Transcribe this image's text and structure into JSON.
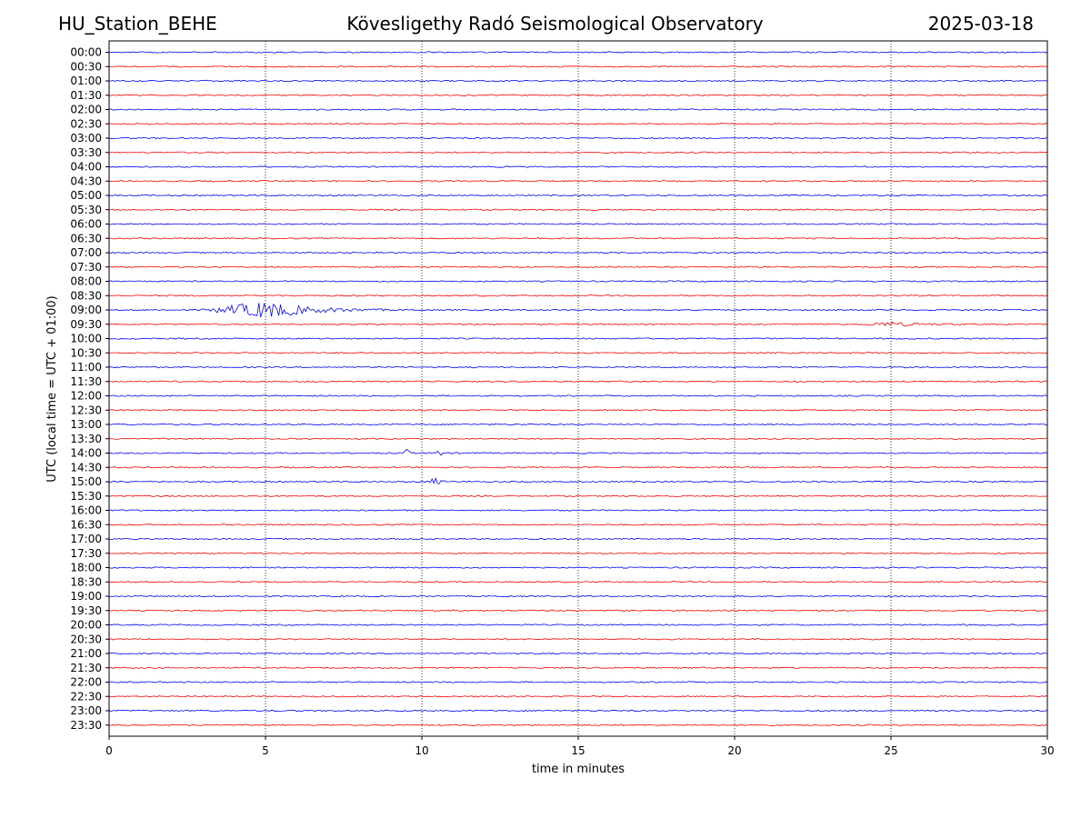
{
  "header": {
    "station": "HU_Station_BEHE",
    "observatory": "Kövesligethy Radó Seismological Observatory",
    "date": "2025-03-18"
  },
  "chart_data": {
    "type": "line",
    "title": "Kövesligethy Radó Seismological Observatory",
    "xlabel": "time in minutes",
    "ylabel": "UTC (local time = UTC + 01:00)",
    "xlim": [
      0,
      30
    ],
    "xticks": [
      "0",
      "5",
      "10",
      "15",
      "20",
      "25",
      "30"
    ],
    "grid": "vertical dotted lines at 5-minute ticks",
    "trace_colors": [
      "#0000ff",
      "#ff0000"
    ],
    "rows": [
      "00:00",
      "00:30",
      "01:00",
      "01:30",
      "02:00",
      "02:30",
      "03:00",
      "03:30",
      "04:00",
      "04:30",
      "05:00",
      "05:30",
      "06:00",
      "06:30",
      "07:00",
      "07:30",
      "08:00",
      "08:30",
      "09:00",
      "09:30",
      "10:00",
      "10:30",
      "11:00",
      "11:30",
      "12:00",
      "12:30",
      "13:00",
      "13:30",
      "14:00",
      "14:30",
      "15:00",
      "15:30",
      "16:00",
      "16:30",
      "17:00",
      "17:30",
      "18:00",
      "18:30",
      "19:00",
      "19:30",
      "20:00",
      "20:30",
      "21:00",
      "21:30",
      "22:00",
      "22:30",
      "23:00",
      "23:30"
    ],
    "events": [
      {
        "row": "09:00",
        "start_min": 2.9,
        "peak_min": 5.0,
        "end_min": 9.0,
        "amplitude": 1.0
      },
      {
        "row": "09:30",
        "start_min": 24.0,
        "peak_min": 25.0,
        "end_min": 27.5,
        "amplitude": 0.25
      },
      {
        "row": "14:00",
        "start_min": 9.4,
        "peak_min": 9.5,
        "end_min": 9.7,
        "amplitude": 0.7
      },
      {
        "row": "14:00",
        "start_min": 10.4,
        "peak_min": 10.55,
        "end_min": 10.8,
        "amplitude": 0.45
      },
      {
        "row": "15:00",
        "start_min": 10.25,
        "peak_min": 10.35,
        "end_min": 10.9,
        "amplitude": 0.6
      }
    ]
  }
}
